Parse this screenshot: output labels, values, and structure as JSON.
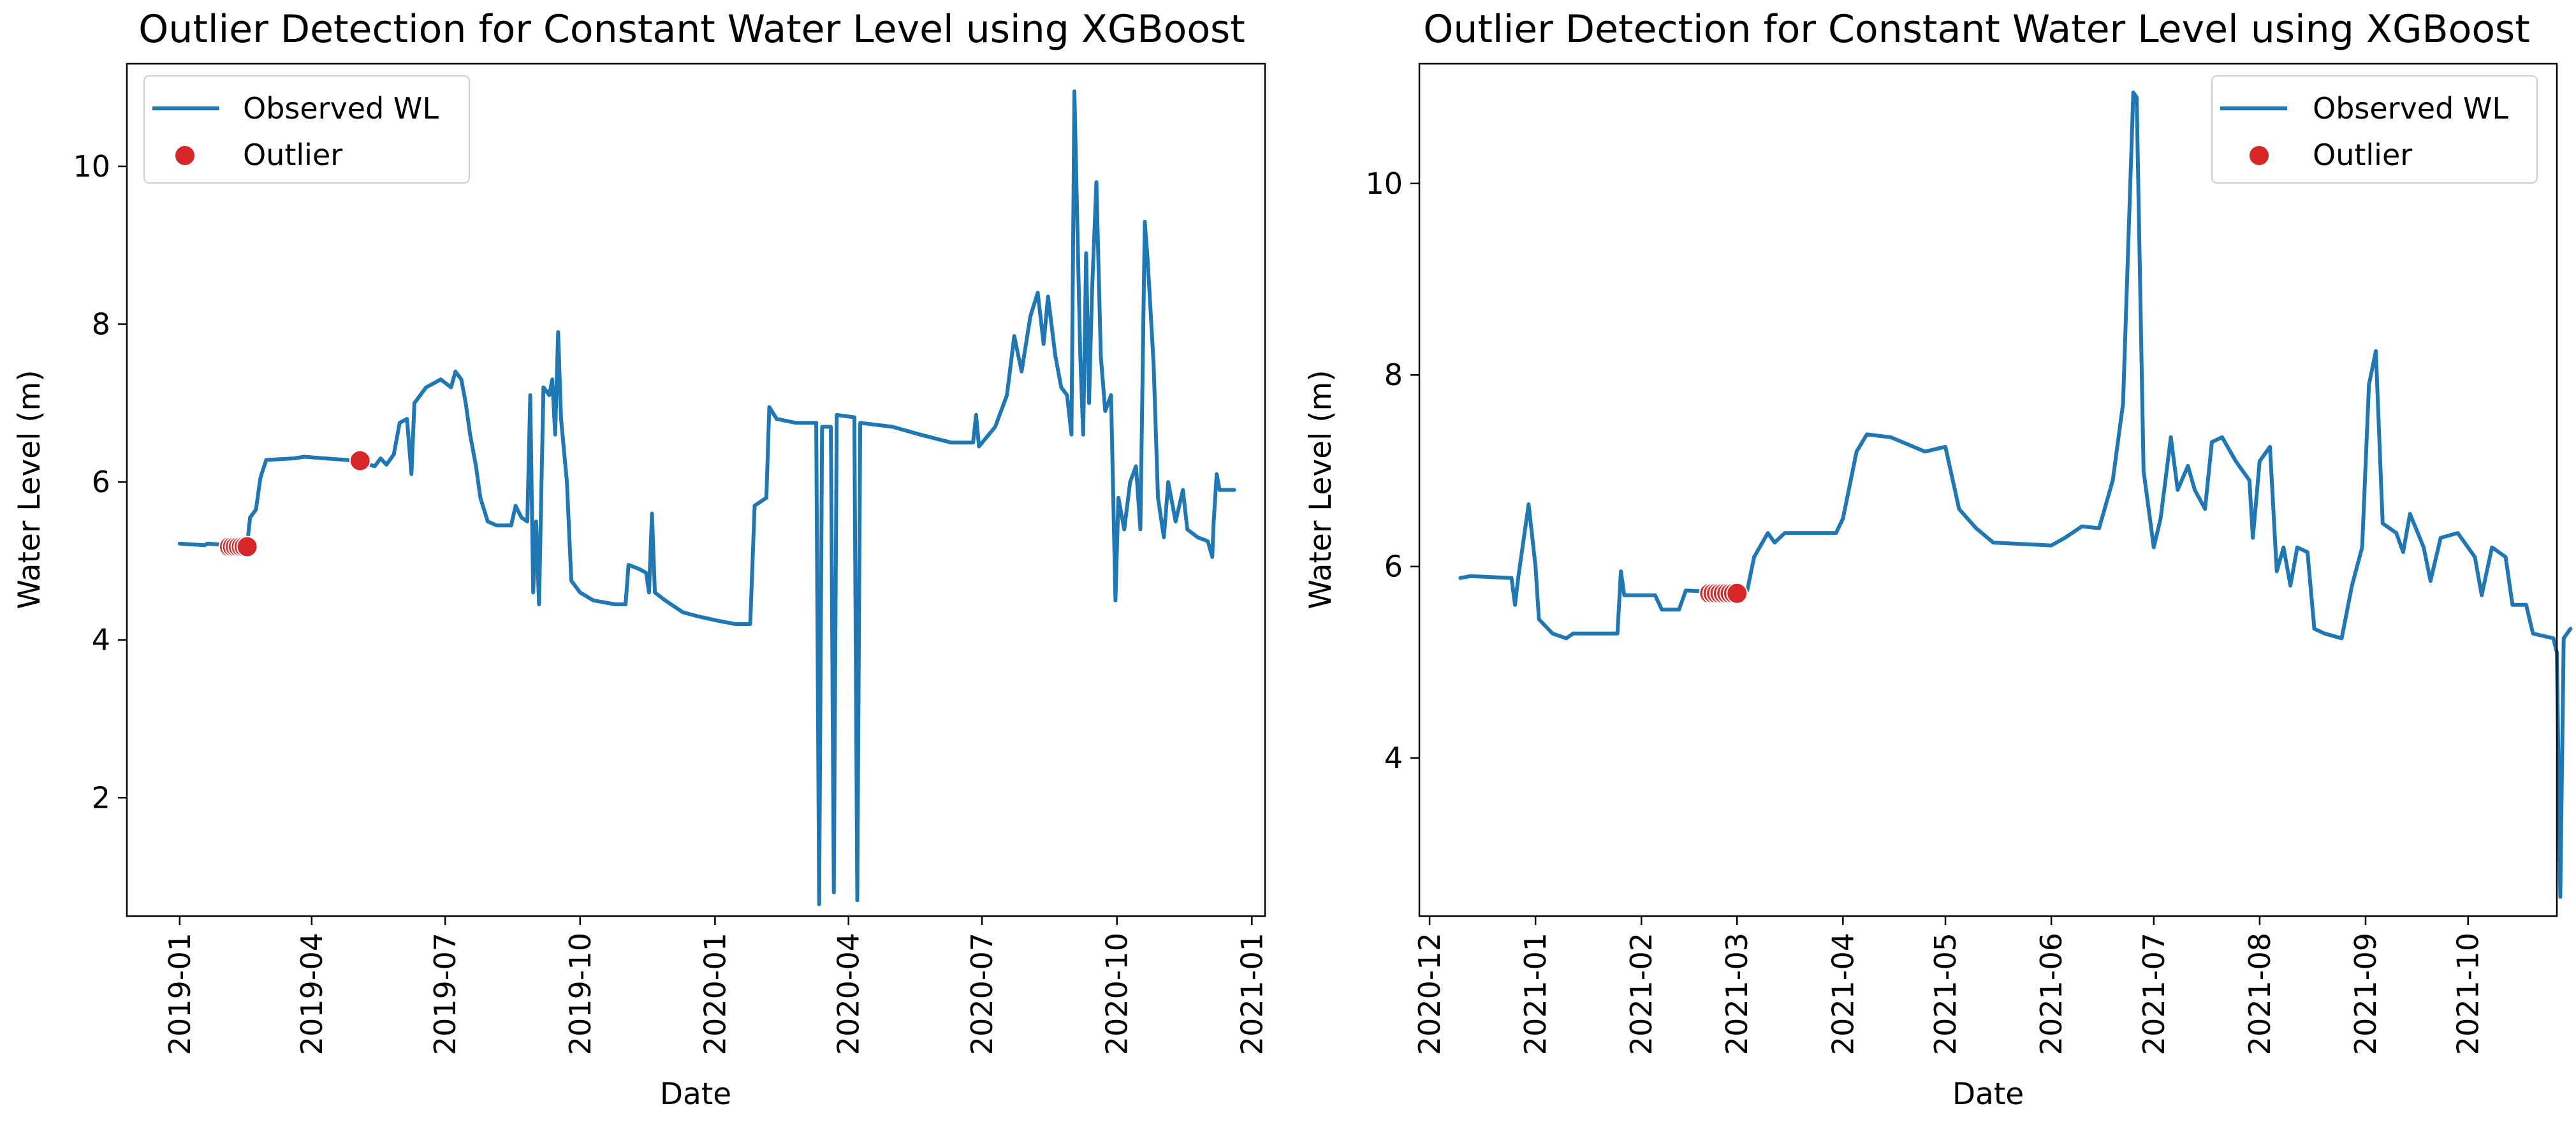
{
  "chart_data": [
    {
      "type": "line",
      "title": "Outlier Detection for Constant Water Level using XGBoost",
      "xlabel": "Date",
      "ylabel": "Water Level (m)",
      "xlim": [
        "2018-11-26",
        "2021-01-10"
      ],
      "ylim": [
        0.5,
        11.3
      ],
      "x_ticks": [
        "2019-01",
        "2019-04",
        "2019-07",
        "2019-10",
        "2020-01",
        "2020-04",
        "2020-07",
        "2020-10",
        "2021-01"
      ],
      "y_ticks": [
        2,
        4,
        6,
        8,
        10
      ],
      "legend": {
        "position": "upper left",
        "entries": [
          "Observed WL",
          "Outlier"
        ]
      },
      "series": [
        {
          "name": "Observed WL",
          "color": "#1f77b4",
          "points": [
            [
              "2019-01-01",
              5.22
            ],
            [
              "2019-01-18",
              5.2
            ],
            [
              "2019-01-20",
              5.22
            ],
            [
              "2019-02-05",
              5.2
            ],
            [
              "2019-02-16",
              5.2
            ],
            [
              "2019-02-18",
              5.55
            ],
            [
              "2019-02-22",
              5.65
            ],
            [
              "2019-02-25",
              6.05
            ],
            [
              "2019-03-01",
              6.28
            ],
            [
              "2019-03-20",
              6.3
            ],
            [
              "2019-03-27",
              6.32
            ],
            [
              "2019-04-10",
              6.3
            ],
            [
              "2019-04-25",
              6.28
            ],
            [
              "2019-05-05",
              6.25
            ],
            [
              "2019-05-14",
              6.2
            ],
            [
              "2019-05-18",
              6.3
            ],
            [
              "2019-05-22",
              6.22
            ],
            [
              "2019-05-27",
              6.35
            ],
            [
              "2019-05-31",
              6.75
            ],
            [
              "2019-06-05",
              6.8
            ],
            [
              "2019-06-08",
              6.1
            ],
            [
              "2019-06-10",
              7.0
            ],
            [
              "2019-06-18",
              7.2
            ],
            [
              "2019-06-28",
              7.3
            ],
            [
              "2019-07-05",
              7.2
            ],
            [
              "2019-07-08",
              7.4
            ],
            [
              "2019-07-12",
              7.3
            ],
            [
              "2019-07-15",
              7.0
            ],
            [
              "2019-07-18",
              6.6
            ],
            [
              "2019-07-22",
              6.2
            ],
            [
              "2019-07-25",
              5.8
            ],
            [
              "2019-07-30",
              5.5
            ],
            [
              "2019-08-05",
              5.45
            ],
            [
              "2019-08-15",
              5.45
            ],
            [
              "2019-08-18",
              5.7
            ],
            [
              "2019-08-22",
              5.55
            ],
            [
              "2019-08-26",
              5.5
            ],
            [
              "2019-08-28",
              7.1
            ],
            [
              "2019-08-30",
              4.6
            ],
            [
              "2019-09-01",
              5.5
            ],
            [
              "2019-09-03",
              4.45
            ],
            [
              "2019-09-06",
              7.2
            ],
            [
              "2019-09-10",
              7.1
            ],
            [
              "2019-09-12",
              7.3
            ],
            [
              "2019-09-14",
              6.6
            ],
            [
              "2019-09-16",
              7.9
            ],
            [
              "2019-09-18",
              6.8
            ],
            [
              "2019-09-22",
              6.0
            ],
            [
              "2019-09-25",
              4.75
            ],
            [
              "2019-10-01",
              4.6
            ],
            [
              "2019-10-10",
              4.5
            ],
            [
              "2019-10-25",
              4.45
            ],
            [
              "2019-11-01",
              4.45
            ],
            [
              "2019-11-03",
              4.95
            ],
            [
              "2019-11-10",
              4.9
            ],
            [
              "2019-11-15",
              4.85
            ],
            [
              "2019-11-17",
              4.6
            ],
            [
              "2019-11-19",
              5.6
            ],
            [
              "2019-11-21",
              4.6
            ],
            [
              "2019-11-28",
              4.5
            ],
            [
              "2019-12-10",
              4.35
            ],
            [
              "2019-12-20",
              4.3
            ],
            [
              "2020-01-01",
              4.25
            ],
            [
              "2020-01-15",
              4.2
            ],
            [
              "2020-01-25",
              4.2
            ],
            [
              "2020-01-28",
              5.7
            ],
            [
              "2020-02-05",
              5.8
            ],
            [
              "2020-02-07",
              6.95
            ],
            [
              "2020-02-12",
              6.8
            ],
            [
              "2020-02-25",
              6.75
            ],
            [
              "2020-03-10",
              6.75
            ],
            [
              "2020-03-12",
              0.65
            ],
            [
              "2020-03-14",
              6.7
            ],
            [
              "2020-03-20",
              6.7
            ],
            [
              "2020-03-22",
              0.8
            ],
            [
              "2020-03-24",
              6.85
            ],
            [
              "2020-04-05",
              6.82
            ],
            [
              "2020-04-07",
              0.7
            ],
            [
              "2020-04-09",
              6.75
            ],
            [
              "2020-05-01",
              6.7
            ],
            [
              "2020-05-20",
              6.6
            ],
            [
              "2020-06-10",
              6.5
            ],
            [
              "2020-06-25",
              6.5
            ],
            [
              "2020-06-27",
              6.85
            ],
            [
              "2020-06-29",
              6.45
            ],
            [
              "2020-07-10",
              6.7
            ],
            [
              "2020-07-18",
              7.1
            ],
            [
              "2020-07-23",
              7.85
            ],
            [
              "2020-07-28",
              7.4
            ],
            [
              "2020-08-03",
              8.1
            ],
            [
              "2020-08-08",
              8.4
            ],
            [
              "2020-08-12",
              7.75
            ],
            [
              "2020-08-15",
              8.35
            ],
            [
              "2020-08-20",
              7.6
            ],
            [
              "2020-08-24",
              7.2
            ],
            [
              "2020-08-28",
              7.1
            ],
            [
              "2020-08-31",
              6.6
            ],
            [
              "2020-09-02",
              10.95
            ],
            [
              "2020-09-06",
              7.6
            ],
            [
              "2020-09-08",
              6.6
            ],
            [
              "2020-09-10",
              8.9
            ],
            [
              "2020-09-12",
              7.0
            ],
            [
              "2020-09-14",
              8.4
            ],
            [
              "2020-09-17",
              9.8
            ],
            [
              "2020-09-20",
              7.6
            ],
            [
              "2020-09-23",
              6.9
            ],
            [
              "2020-09-27",
              7.1
            ],
            [
              "2020-09-30",
              4.5
            ],
            [
              "2020-10-02",
              5.8
            ],
            [
              "2020-10-06",
              5.4
            ],
            [
              "2020-10-10",
              6.0
            ],
            [
              "2020-10-14",
              6.2
            ],
            [
              "2020-10-17",
              5.4
            ],
            [
              "2020-10-20",
              9.3
            ],
            [
              "2020-10-22",
              8.8
            ],
            [
              "2020-10-26",
              7.5
            ],
            [
              "2020-10-29",
              5.8
            ],
            [
              "2020-11-02",
              5.3
            ],
            [
              "2020-11-05",
              6.0
            ],
            [
              "2020-11-10",
              5.5
            ],
            [
              "2020-11-15",
              5.9
            ],
            [
              "2020-11-18",
              5.4
            ],
            [
              "2020-11-25",
              5.3
            ],
            [
              "2020-12-02",
              5.25
            ],
            [
              "2020-12-05",
              5.05
            ],
            [
              "2020-12-06",
              5.5
            ],
            [
              "2020-12-08",
              6.1
            ],
            [
              "2020-12-10",
              5.9
            ],
            [
              "2020-12-20",
              5.9
            ]
          ]
        },
        {
          "name": "Outlier",
          "color": "#d62728",
          "points": [
            [
              "2019-02-04",
              5.18
            ],
            [
              "2019-02-06",
              5.18
            ],
            [
              "2019-02-08",
              5.18
            ],
            [
              "2019-02-10",
              5.18
            ],
            [
              "2019-02-12",
              5.18
            ],
            [
              "2019-02-14",
              5.18
            ],
            [
              "2019-02-16",
              5.18
            ],
            [
              "2019-05-04",
              6.27
            ]
          ]
        }
      ]
    },
    {
      "type": "line",
      "title": "Outlier Detection for Constant Water Level using XGBoost",
      "xlabel": "Date",
      "ylabel": "Water Level (m)",
      "xlim": [
        "2020-11-28",
        "2021-10-27"
      ],
      "ylim": [
        2.35,
        11.25
      ],
      "x_ticks": [
        "2020-12",
        "2021-01",
        "2021-02",
        "2021-03",
        "2021-04",
        "2021-05",
        "2021-06",
        "2021-07",
        "2021-08",
        "2021-09",
        "2021-10"
      ],
      "y_ticks": [
        4,
        6,
        8,
        10
      ],
      "legend": {
        "position": "upper right",
        "entries": [
          "Observed WL",
          "Outlier"
        ]
      },
      "series": [
        {
          "name": "Observed WL",
          "color": "#1f77b4",
          "points": [
            [
              "2020-12-10",
              5.88
            ],
            [
              "2020-12-13",
              5.9
            ],
            [
              "2020-12-25",
              5.88
            ],
            [
              "2020-12-26",
              5.6
            ],
            [
              "2020-12-27",
              5.9
            ],
            [
              "2020-12-30",
              6.65
            ],
            [
              "2021-01-01",
              6.0
            ],
            [
              "2021-01-02",
              5.45
            ],
            [
              "2021-01-06",
              5.3
            ],
            [
              "2021-01-10",
              5.25
            ],
            [
              "2021-01-12",
              5.3
            ],
            [
              "2021-01-25",
              5.3
            ],
            [
              "2021-01-26",
              5.95
            ],
            [
              "2021-01-27",
              5.7
            ],
            [
              "2021-02-05",
              5.7
            ],
            [
              "2021-02-07",
              5.55
            ],
            [
              "2021-02-12",
              5.55
            ],
            [
              "2021-02-14",
              5.75
            ],
            [
              "2021-03-01",
              5.72
            ],
            [
              "2021-03-04",
              5.75
            ],
            [
              "2021-03-06",
              6.1
            ],
            [
              "2021-03-10",
              6.35
            ],
            [
              "2021-03-12",
              6.25
            ],
            [
              "2021-03-15",
              6.35
            ],
            [
              "2021-03-30",
              6.35
            ],
            [
              "2021-04-01",
              6.5
            ],
            [
              "2021-04-05",
              7.2
            ],
            [
              "2021-04-08",
              7.38
            ],
            [
              "2021-04-15",
              7.35
            ],
            [
              "2021-04-25",
              7.2
            ],
            [
              "2021-05-01",
              7.25
            ],
            [
              "2021-05-05",
              6.6
            ],
            [
              "2021-05-10",
              6.4
            ],
            [
              "2021-05-15",
              6.25
            ],
            [
              "2021-06-01",
              6.22
            ],
            [
              "2021-06-05",
              6.3
            ],
            [
              "2021-06-10",
              6.42
            ],
            [
              "2021-06-15",
              6.4
            ],
            [
              "2021-06-19",
              6.9
            ],
            [
              "2021-06-22",
              7.7
            ],
            [
              "2021-06-25",
              10.95
            ],
            [
              "2021-06-26",
              10.9
            ],
            [
              "2021-06-28",
              7.0
            ],
            [
              "2021-07-01",
              6.2
            ],
            [
              "2021-07-03",
              6.5
            ],
            [
              "2021-07-06",
              7.35
            ],
            [
              "2021-07-08",
              6.8
            ],
            [
              "2021-07-11",
              7.05
            ],
            [
              "2021-07-13",
              6.8
            ],
            [
              "2021-07-16",
              6.6
            ],
            [
              "2021-07-18",
              7.3
            ],
            [
              "2021-07-21",
              7.35
            ],
            [
              "2021-07-25",
              7.1
            ],
            [
              "2021-07-29",
              6.9
            ],
            [
              "2021-07-30",
              6.3
            ],
            [
              "2021-08-01",
              7.1
            ],
            [
              "2021-08-04",
              7.25
            ],
            [
              "2021-08-06",
              5.95
            ],
            [
              "2021-08-08",
              6.2
            ],
            [
              "2021-08-10",
              5.8
            ],
            [
              "2021-08-12",
              6.2
            ],
            [
              "2021-08-15",
              6.15
            ],
            [
              "2021-08-17",
              5.35
            ],
            [
              "2021-08-20",
              5.3
            ],
            [
              "2021-08-25",
              5.25
            ],
            [
              "2021-08-28",
              5.8
            ],
            [
              "2021-08-31",
              6.2
            ],
            [
              "2021-09-02",
              7.9
            ],
            [
              "2021-09-04",
              8.25
            ],
            [
              "2021-09-06",
              6.45
            ],
            [
              "2021-09-10",
              6.35
            ],
            [
              "2021-09-12",
              6.15
            ],
            [
              "2021-09-14",
              6.55
            ],
            [
              "2021-09-18",
              6.2
            ],
            [
              "2021-09-20",
              5.85
            ],
            [
              "2021-09-23",
              6.3
            ],
            [
              "2021-09-28",
              6.35
            ],
            [
              "2021-10-03",
              6.1
            ],
            [
              "2021-10-05",
              5.7
            ],
            [
              "2021-10-08",
              6.2
            ],
            [
              "2021-10-12",
              6.1
            ],
            [
              "2021-10-14",
              5.6
            ],
            [
              "2021-10-18",
              5.6
            ],
            [
              "2021-10-20",
              5.3
            ],
            [
              "2021-10-26",
              5.25
            ],
            [
              "2021-10-27",
              5.1
            ],
            [
              "2021-10-28",
              2.55
            ],
            [
              "2021-10-29",
              5.25
            ],
            [
              "2021-10-31",
              5.35
            ]
          ]
        },
        {
          "name": "Outlier",
          "color": "#d62728",
          "points": [
            [
              "2021-02-21",
              5.72
            ],
            [
              "2021-02-22",
              5.72
            ],
            [
              "2021-02-23",
              5.72
            ],
            [
              "2021-02-24",
              5.72
            ],
            [
              "2021-02-25",
              5.72
            ],
            [
              "2021-02-26",
              5.72
            ],
            [
              "2021-02-27",
              5.72
            ],
            [
              "2021-02-28",
              5.72
            ],
            [
              "2021-03-01",
              5.72
            ]
          ]
        }
      ]
    }
  ]
}
